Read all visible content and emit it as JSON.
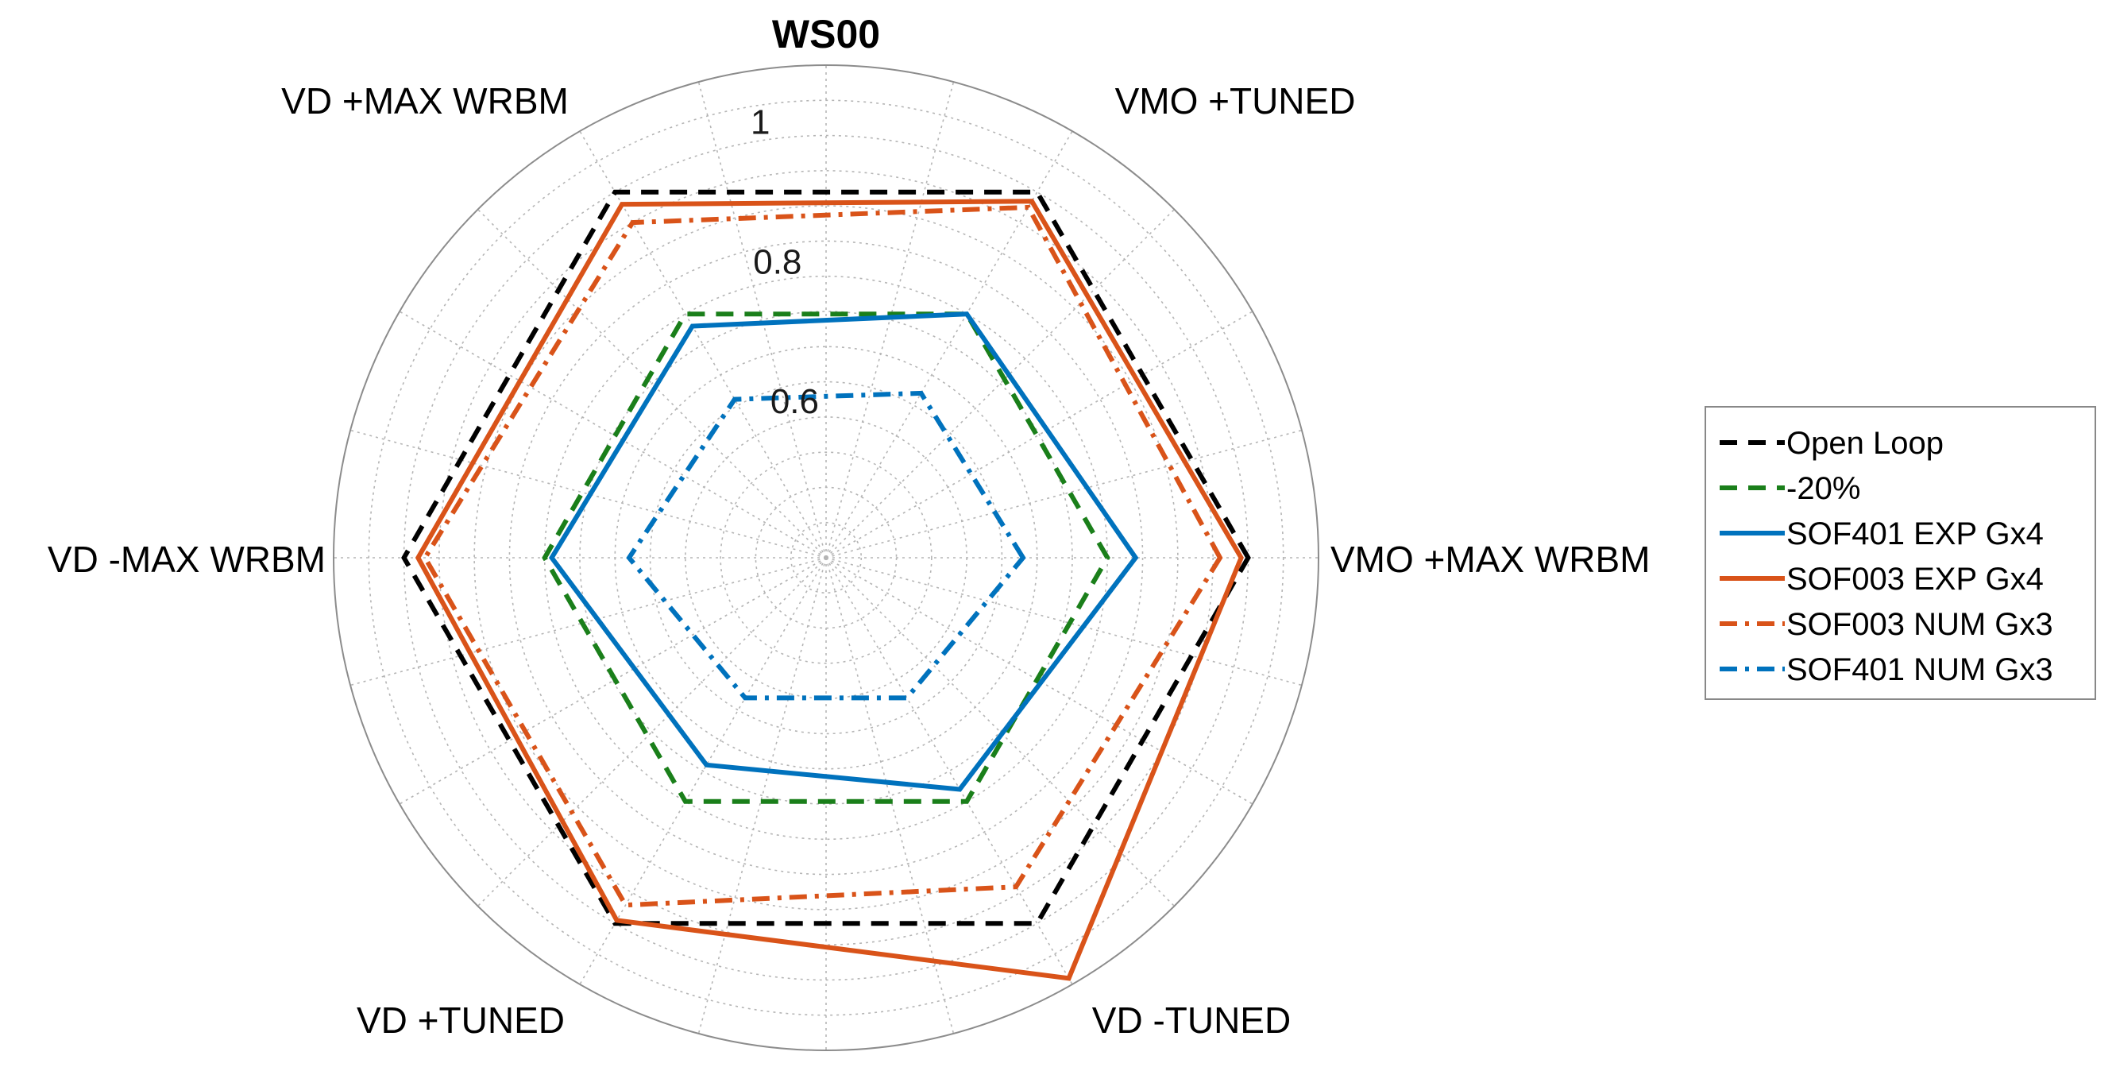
{
  "chart_data": {
    "type": "radar",
    "title": "WS00",
    "axes": [
      "VMO +MAX WRBM",
      "VMO +TUNED",
      "VD +MAX WRBM",
      "VD -MAX WRBM",
      "VD +TUNED",
      "VD -TUNED"
    ],
    "rlim": [
      0.4,
      1.1
    ],
    "rticks": [
      0.6,
      0.8,
      1
    ],
    "rtick_labels": [
      "0.6",
      "0.8",
      "1"
    ],
    "grid": true,
    "legend_position": "right",
    "series": [
      {
        "name": "Open Loop",
        "values": [
          1.0,
          1.0,
          1.0,
          1.0,
          1.0,
          1.0
        ],
        "color": "#000000",
        "style": "dashed"
      },
      {
        "name": "-20%",
        "values": [
          0.8,
          0.8,
          0.8,
          0.8,
          0.8,
          0.8
        ],
        "color": "#1a7f1a",
        "style": "dashed"
      },
      {
        "name": "SOF401 EXP Gx4",
        "values": [
          0.84,
          0.8,
          0.78,
          0.79,
          0.74,
          0.78
        ],
        "color": "#0072bd",
        "style": "solid"
      },
      {
        "name": "SOF003 EXP Gx4",
        "values": [
          0.99,
          0.985,
          0.98,
          0.98,
          0.995,
          1.09
        ],
        "color": "#d95319",
        "style": "solid"
      },
      {
        "name": "SOF003 NUM Gx3",
        "values": [
          0.96,
          0.975,
          0.95,
          0.97,
          0.97,
          0.94
        ],
        "color": "#d95319",
        "style": "dashdot"
      },
      {
        "name": "SOF401 NUM Gx3",
        "values": [
          0.68,
          0.67,
          0.66,
          0.68,
          0.63,
          0.63
        ],
        "color": "#0072bd",
        "style": "dashdot"
      }
    ]
  }
}
